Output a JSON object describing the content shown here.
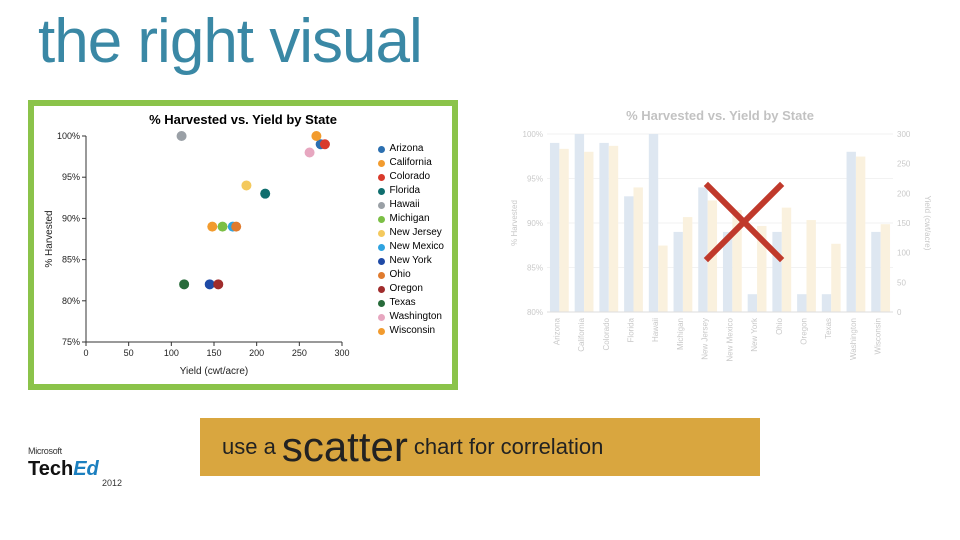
{
  "title": {
    "text": "the right visual",
    "color": "#3a88a5",
    "fontsize": 62
  },
  "frame": {
    "border_color": "#8bc34a",
    "border_width": 6
  },
  "scatter_chart": {
    "type": "scatter",
    "title": "% Harvested vs. Yield by State",
    "xlabel": "Yield (cwt/acre)",
    "ylabel": "% Harvested",
    "xlim": [
      0,
      300
    ],
    "xtick_step": 50,
    "ylim": [
      75,
      100
    ],
    "ytick_step": 5,
    "ytick_suffix": "%",
    "marker_size": 5,
    "axis_color": "#333333",
    "text_color": "#222222",
    "background_color": "#ffffff",
    "series": [
      {
        "name": "Arizona",
        "color": "#2b6fb0",
        "x": 275,
        "y": 99
      },
      {
        "name": "California",
        "color": "#f29b2e",
        "x": 270,
        "y": 100
      },
      {
        "name": "Colorado",
        "color": "#d93a2b",
        "x": 280,
        "y": 99
      },
      {
        "name": "Florida",
        "color": "#0f6e6e",
        "x": 210,
        "y": 93
      },
      {
        "name": "Hawaii",
        "color": "#9aa0a6",
        "x": 112,
        "y": 100
      },
      {
        "name": "Michigan",
        "color": "#7bbf45",
        "x": 160,
        "y": 89
      },
      {
        "name": "New Jersey",
        "color": "#f4c95d",
        "x": 188,
        "y": 94
      },
      {
        "name": "New Mexico",
        "color": "#2fa3e0",
        "x": 172,
        "y": 89
      },
      {
        "name": "New York",
        "color": "#1f4aa6",
        "x": 145,
        "y": 82
      },
      {
        "name": "Ohio",
        "color": "#e07b2e",
        "x": 176,
        "y": 89
      },
      {
        "name": "Oregon",
        "color": "#a02c2c",
        "x": 155,
        "y": 82
      },
      {
        "name": "Texas",
        "color": "#276b3a",
        "x": 115,
        "y": 82
      },
      {
        "name": "Washington",
        "color": "#e7a7c0",
        "x": 262,
        "y": 98
      },
      {
        "name": "Wisconsin",
        "color": "#f29b2e",
        "x": 148,
        "y": 89
      }
    ]
  },
  "bar_chart": {
    "type": "bar",
    "title": "% Harvested vs. Yield by State",
    "ylabel_left": "% Harvested",
    "ylabel_right": "Yield (cwt/acre)",
    "ylim_left": [
      80,
      100
    ],
    "ytick_left_step": 5,
    "ytick_left_suffix": "%",
    "ylim_right": [
      0,
      300
    ],
    "ytick_right_step": 50,
    "categories": [
      "Arizona",
      "California",
      "Colorado",
      "Florida",
      "Hawaii",
      "Michigan",
      "New Jersey",
      "New Mexico",
      "New York",
      "Ohio",
      "Oregon",
      "Texas",
      "Washington",
      "Wisconsin"
    ],
    "series": [
      {
        "name": "% Harvested",
        "color": "#9bb8d6",
        "values": [
          99,
          100,
          99,
          93,
          100,
          89,
          94,
          89,
          82,
          89,
          82,
          82,
          98,
          89
        ]
      },
      {
        "name": "Yield",
        "color": "#f2d69b",
        "values": [
          275,
          270,
          280,
          210,
          112,
          160,
          188,
          172,
          145,
          176,
          155,
          115,
          262,
          148
        ]
      }
    ],
    "grid_color": "#d8d8d8",
    "text_color": "#666666",
    "bar_width": 0.38
  },
  "x_mark": {
    "color": "#c0392b",
    "stroke_width": 6,
    "size": 88
  },
  "callout": {
    "bg_color": "#d9a63f",
    "text_color": "#222222",
    "parts": [
      {
        "text": "use a ",
        "big": false
      },
      {
        "text": "scatter",
        "big": true
      },
      {
        "text": " chart for correlation",
        "big": false
      }
    ]
  },
  "brand": {
    "company": "Microsoft",
    "logo_main": "Tech",
    "logo_em": "Ed",
    "year": "2012"
  }
}
